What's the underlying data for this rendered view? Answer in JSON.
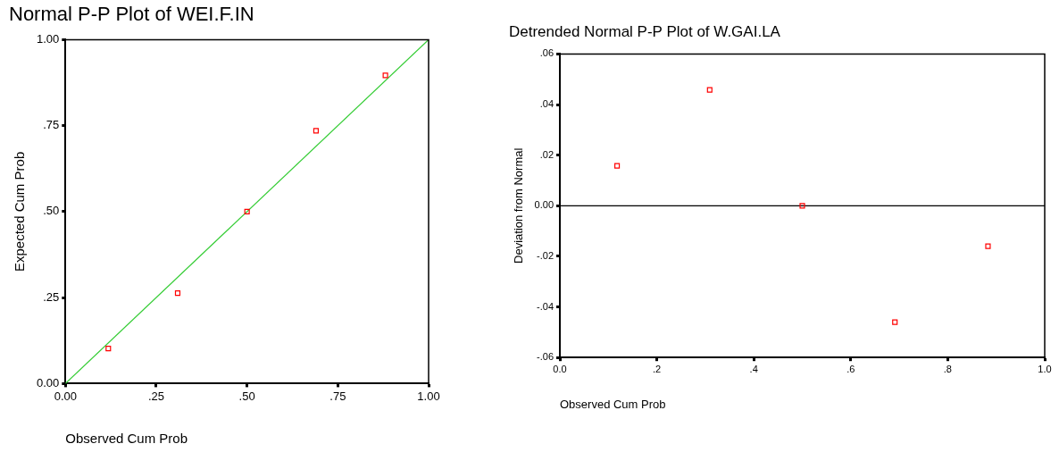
{
  "chart_data": [
    {
      "type": "scatter",
      "title": "Normal P-P Plot of WEI.F.IN",
      "xlabel": "Observed Cum Prob",
      "ylabel": "Expected Cum Prob",
      "marker": "square",
      "grid": false,
      "xlim": [
        0,
        1
      ],
      "ylim": [
        0,
        1
      ],
      "xticks": [
        {
          "value": 0,
          "label": "0.00"
        },
        {
          "value": 0.25,
          "label": ".25"
        },
        {
          "value": 0.5,
          "label": ".50"
        },
        {
          "value": 0.75,
          "label": ".75"
        },
        {
          "value": 1,
          "label": "1.00"
        }
      ],
      "yticks": [
        {
          "value": 0,
          "label": "0.00"
        },
        {
          "value": 0.25,
          "label": ".25"
        },
        {
          "value": 0.5,
          "label": ".50"
        },
        {
          "value": 0.75,
          "label": ".75"
        },
        {
          "value": 1,
          "label": "1.00"
        }
      ],
      "series": [
        {
          "color": "#ff0000",
          "x": [
            0.118,
            0.309,
            0.5,
            0.69,
            0.881
          ],
          "values": [
            0.102,
            0.263,
            0.5,
            0.735,
            0.896
          ]
        },
        {
          "type": "line",
          "color": "#33cc33",
          "marker": "none",
          "x": [
            0,
            1
          ],
          "values": [
            0,
            1
          ]
        }
      ]
    },
    {
      "type": "scatter",
      "title": "Detrended Normal P-P Plot of W.GAI.LA",
      "xlabel": "Observed Cum Prob",
      "ylabel": "Deviation from Normal",
      "marker": "square",
      "grid": false,
      "xlim": [
        0,
        1
      ],
      "ylim": [
        -0.06,
        0.06
      ],
      "xticks": [
        {
          "value": 0,
          "label": "0.0"
        },
        {
          "value": 0.2,
          "label": ".2"
        },
        {
          "value": 0.4,
          "label": ".4"
        },
        {
          "value": 0.6,
          "label": ".6"
        },
        {
          "value": 0.8,
          "label": ".8"
        },
        {
          "value": 1,
          "label": "1.0"
        }
      ],
      "yticks": [
        {
          "value": -0.06,
          "label": "-.06"
        },
        {
          "value": -0.04,
          "label": "-.04"
        },
        {
          "value": -0.02,
          "label": "-.02"
        },
        {
          "value": 0,
          "label": "0.00"
        },
        {
          "value": 0.02,
          "label": ".02"
        },
        {
          "value": 0.04,
          "label": ".04"
        },
        {
          "value": 0.06,
          "label": ".06"
        }
      ],
      "series": [
        {
          "color": "#ff0000",
          "x": [
            0.118,
            0.309,
            0.5,
            0.691,
            0.883
          ],
          "values": [
            0.0158,
            0.0458,
            0,
            -0.046,
            -0.016
          ]
        }
      ],
      "ref_lines": [
        {
          "axis": "y",
          "value": 0,
          "color": "#000000"
        }
      ]
    }
  ]
}
